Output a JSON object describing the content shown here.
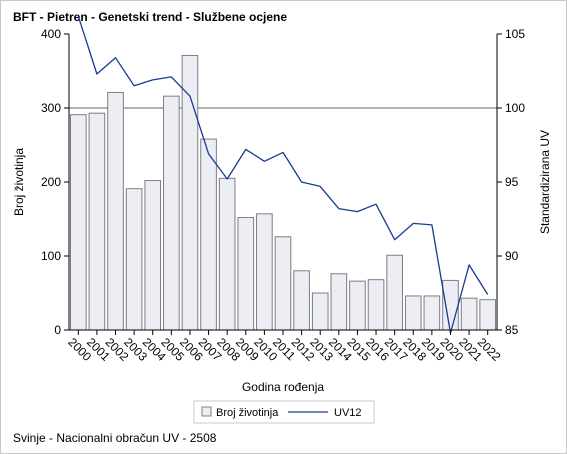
{
  "title": "BFT - Pietren - Genetski trend - Službene ocjene",
  "footnote": "Svinje - Nacionalni obračun UV - 2508",
  "colors": {
    "bar_fill": "#eceef3",
    "bar_stroke": "#7b7e86",
    "line": "#163d8f",
    "reference": "#9a9a9a",
    "axis": "#000000"
  },
  "chart_data": {
    "type": "bar",
    "categories": [
      "2000",
      "2001",
      "2002",
      "2003",
      "2004",
      "2005",
      "2006",
      "2007",
      "2008",
      "2009",
      "2010",
      "2011",
      "2012",
      "2013",
      "2014",
      "2015",
      "2016",
      "2017",
      "2018",
      "2019",
      "2020",
      "2021",
      "2022"
    ],
    "series": [
      {
        "name": "Broj životinja",
        "type": "bar",
        "axis": "left",
        "values": [
          291,
          293,
          321,
          191,
          202,
          316,
          371,
          258,
          205,
          152,
          157,
          126,
          80,
          50,
          76,
          66,
          68,
          101,
          46,
          46,
          67,
          43,
          41
        ]
      },
      {
        "name": "UV12",
        "type": "line",
        "axis": "right",
        "values": [
          106.2,
          102.3,
          103.4,
          101.5,
          101.9,
          102.1,
          100.8,
          96.9,
          95.2,
          97.2,
          96.4,
          97.0,
          95.0,
          94.7,
          93.2,
          93.0,
          93.5,
          91.1,
          92.2,
          92.1,
          84.8,
          89.4,
          87.4
        ]
      }
    ],
    "xlabel": "Godina rođenja",
    "ylabel": "Broj životinja",
    "y2label": "Standardizirana UV",
    "ylim": [
      0,
      400
    ],
    "yticks": [
      0,
      100,
      200,
      300,
      400
    ],
    "y2lim": [
      85,
      105
    ],
    "y2ticks": [
      85,
      90,
      95,
      100,
      105
    ],
    "reference_line": 100,
    "legend": [
      "Broj životinja",
      "UV12"
    ],
    "legend_position": "bottom",
    "grid": false
  }
}
